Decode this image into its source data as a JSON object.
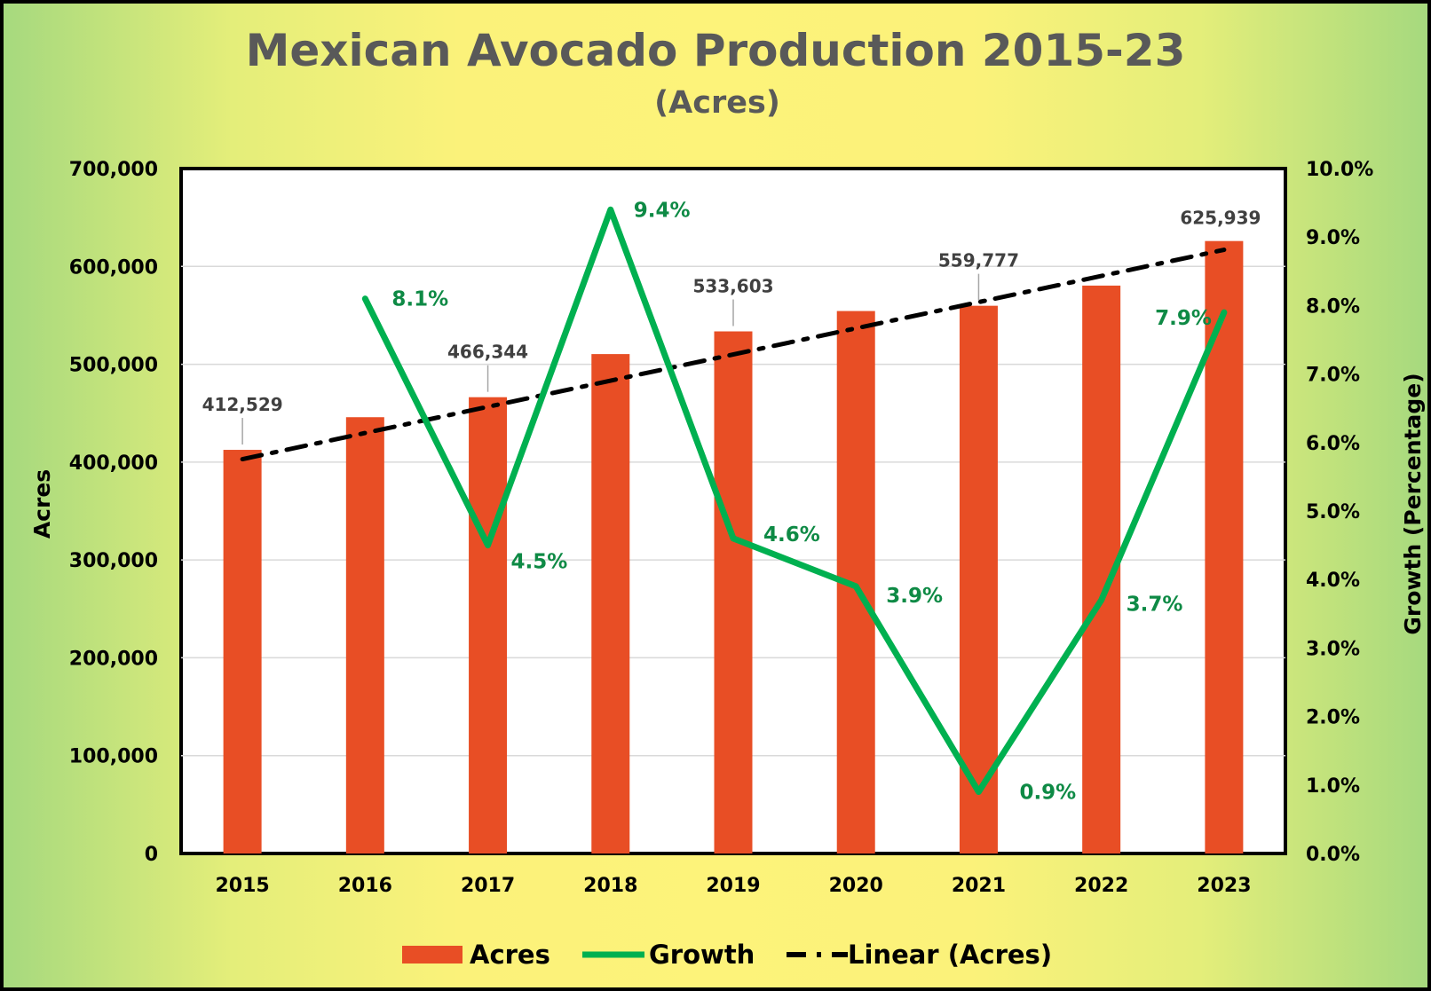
{
  "chart_data": {
    "type": "bar",
    "title": "Mexican Avocado Production 2015-23",
    "subtitle": "(Acres)",
    "categories": [
      "2015",
      "2016",
      "2017",
      "2018",
      "2019",
      "2020",
      "2021",
      "2022",
      "2023"
    ],
    "series": [
      {
        "name": "Acres",
        "type": "bar",
        "axis": "left",
        "color": "#e84e25",
        "values": [
          412529,
          445900,
          466344,
          510400,
          533603,
          554400,
          559777,
          580400,
          625939
        ],
        "data_labels": [
          "412,529",
          null,
          "466,344",
          null,
          "533,603",
          null,
          "559,777",
          null,
          "625,939"
        ]
      },
      {
        "name": "Growth",
        "type": "line",
        "axis": "right",
        "color": "#00b050",
        "values": [
          null,
          8.1,
          4.5,
          9.4,
          4.6,
          3.9,
          0.9,
          3.7,
          7.9
        ],
        "data_labels": [
          null,
          "8.1%",
          "4.5%",
          "9.4%",
          "4.6%",
          "3.9%",
          "0.9%",
          "3.7%",
          "7.9%"
        ]
      },
      {
        "name": "Linear (Acres)",
        "type": "trendline",
        "axis": "left",
        "color": "#000000",
        "start": 403000,
        "end": 617000
      }
    ],
    "ylabel": "Acres",
    "y2label": "Growth (Percentage)",
    "ylim": [
      0,
      700000
    ],
    "y2lim": [
      0,
      10
    ],
    "yticks": [
      "0",
      "100,000",
      "200,000",
      "300,000",
      "400,000",
      "500,000",
      "600,000",
      "700,000"
    ],
    "y2ticks": [
      "0.0%",
      "1.0%",
      "2.0%",
      "3.0%",
      "4.0%",
      "5.0%",
      "6.0%",
      "7.0%",
      "8.0%",
      "9.0%",
      "10.0%"
    ],
    "grid": true,
    "legend": {
      "position": "bottom",
      "entries": [
        "Acres",
        "Growth",
        "Linear (Acres)"
      ]
    }
  }
}
